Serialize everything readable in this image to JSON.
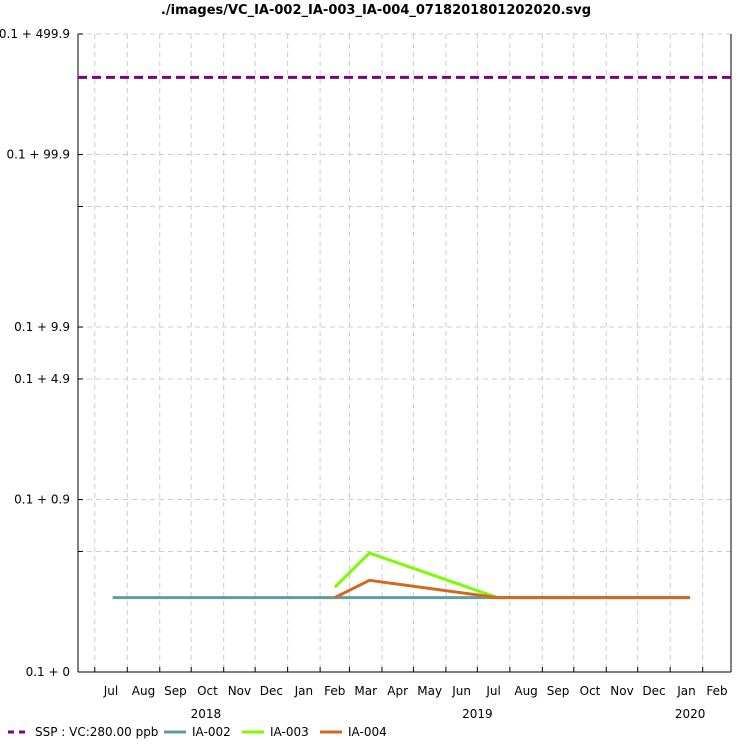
{
  "chart_data": {
    "type": "line",
    "title": "./images/VC_IA-002_IA-003_IA-004_0718201801202020.svg",
    "y_scale": "log (0.1 + value)",
    "grid": true,
    "legend_placement": "bottom",
    "y_ticks": [
      {
        "label": "0.1 + 499.9",
        "value": 499.9
      },
      {
        "label": "0.1 + 99.9",
        "value": 99.9
      },
      {
        "label": "",
        "value": 49.9
      },
      {
        "label": "0.1 + 9.9",
        "value": 9.9
      },
      {
        "label": "0.1 + 4.9",
        "value": 4.9
      },
      {
        "label": "0.1 + 0.9",
        "value": 0.9
      },
      {
        "label": "",
        "value": 0.4
      },
      {
        "label": "0.1 + 0",
        "value": 0
      }
    ],
    "ylim": [
      0,
      499.9
    ],
    "xlim": [
      "2018-06-15",
      "2020-02-28"
    ],
    "x_months": [
      {
        "label": "Jul",
        "date": "2018-07-01"
      },
      {
        "label": "Aug",
        "date": "2018-08-01"
      },
      {
        "label": "Sep",
        "date": "2018-09-01"
      },
      {
        "label": "Oct",
        "date": "2018-10-01"
      },
      {
        "label": "Nov",
        "date": "2018-11-01"
      },
      {
        "label": "Dec",
        "date": "2018-12-01"
      },
      {
        "label": "Jan",
        "date": "2019-01-01"
      },
      {
        "label": "Feb",
        "date": "2019-02-01"
      },
      {
        "label": "Mar",
        "date": "2019-03-01"
      },
      {
        "label": "Apr",
        "date": "2019-04-01"
      },
      {
        "label": "May",
        "date": "2019-05-01"
      },
      {
        "label": "Jun",
        "date": "2019-06-01"
      },
      {
        "label": "Jul",
        "date": "2019-07-01"
      },
      {
        "label": "Aug",
        "date": "2019-08-01"
      },
      {
        "label": "Sep",
        "date": "2019-09-01"
      },
      {
        "label": "Oct",
        "date": "2019-10-01"
      },
      {
        "label": "Nov",
        "date": "2019-11-01"
      },
      {
        "label": "Dec",
        "date": "2019-12-01"
      },
      {
        "label": "Jan",
        "date": "2020-01-01"
      },
      {
        "label": "Feb",
        "date": "2020-02-01"
      }
    ],
    "x_years": [
      {
        "label": "2018",
        "date": "2018-10-15"
      },
      {
        "label": "2019",
        "date": "2019-07-01"
      },
      {
        "label": "2020",
        "date": "2020-01-20"
      }
    ],
    "series": [
      {
        "name": "SSP : VC:280.00 ppb",
        "color": "#800080",
        "dash": true,
        "points": [
          {
            "x": "2018-06-15",
            "y": 280
          },
          {
            "x": "2020-02-28",
            "y": 280
          }
        ]
      },
      {
        "name": "IA-002",
        "color": "#5f9ea0",
        "dash": false,
        "points": [
          {
            "x": "2018-07-18",
            "y": 0.17
          },
          {
            "x": "2019-02-15",
            "y": 0.17
          },
          {
            "x": "2019-03-20",
            "y": 0.17
          },
          {
            "x": "2019-07-20",
            "y": 0.17
          },
          {
            "x": "2020-01-20",
            "y": 0.17
          }
        ]
      },
      {
        "name": "IA-003",
        "color": "#7cfc00",
        "dash": false,
        "points": [
          {
            "x": "2019-02-15",
            "y": 0.21
          },
          {
            "x": "2019-03-20",
            "y": 0.39
          },
          {
            "x": "2019-07-20",
            "y": 0.17
          }
        ]
      },
      {
        "name": "IA-004",
        "color": "#d2691e",
        "dash": false,
        "points": [
          {
            "x": "2019-02-15",
            "y": 0.17
          },
          {
            "x": "2019-03-20",
            "y": 0.24
          },
          {
            "x": "2019-07-20",
            "y": 0.17
          },
          {
            "x": "2020-01-20",
            "y": 0.17
          }
        ]
      }
    ]
  }
}
